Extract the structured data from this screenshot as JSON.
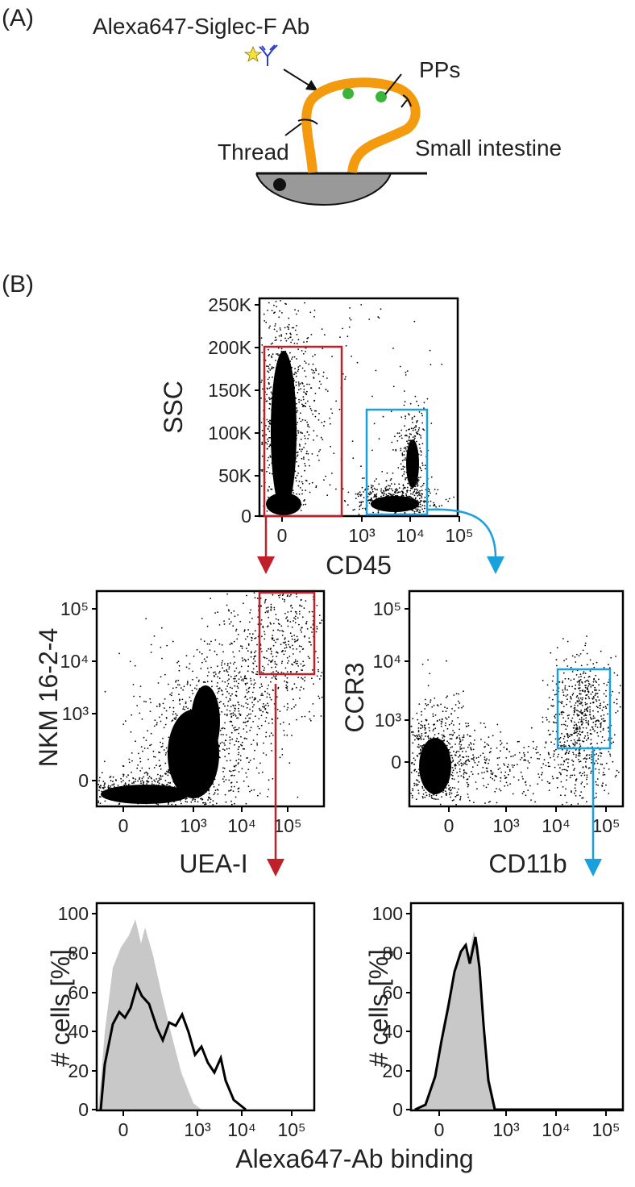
{
  "panel_a": {
    "label": "(A)",
    "antibody": "Alexa647-Siglec-F Ab",
    "pps": "PPs",
    "thread": "Thread",
    "organ": "Small intestine"
  },
  "panel_b": {
    "label": "(B)",
    "plots": [
      {
        "x_label": "CD45",
        "y_label": "SSC",
        "xticks": [
          "0",
          "10³",
          "10⁴",
          "10⁵"
        ],
        "yticks": [
          "250K",
          "200K",
          "150K",
          "100K",
          "50K",
          "0"
        ]
      },
      {
        "x_label": "UEA-I",
        "y_label": "NKM 16-2-4",
        "xticks": [
          "0",
          "10³",
          "10⁴",
          "10⁵"
        ],
        "yticks": [
          "10⁵",
          "10⁴",
          "10³",
          "0"
        ]
      },
      {
        "x_label": "CD11b",
        "y_label": "CCR3",
        "xticks": [
          "0",
          "10³",
          "10⁴",
          "10⁵"
        ],
        "yticks": [
          "10⁵",
          "10⁴",
          "10³",
          "0"
        ]
      },
      {
        "y_label": "# cells [%]",
        "xticks": [
          "0",
          "10³",
          "10⁴",
          "10⁵"
        ],
        "yticks": [
          "100",
          "80",
          "60",
          "40",
          "20",
          "0"
        ]
      },
      {
        "y_label": "# cells [%]",
        "xticks": [
          "0",
          "10³",
          "10⁴",
          "10⁵"
        ],
        "yticks": [
          "100",
          "80",
          "60",
          "40",
          "20",
          "0"
        ]
      }
    ],
    "shared_x_label": "Alexa647-Ab binding"
  }
}
